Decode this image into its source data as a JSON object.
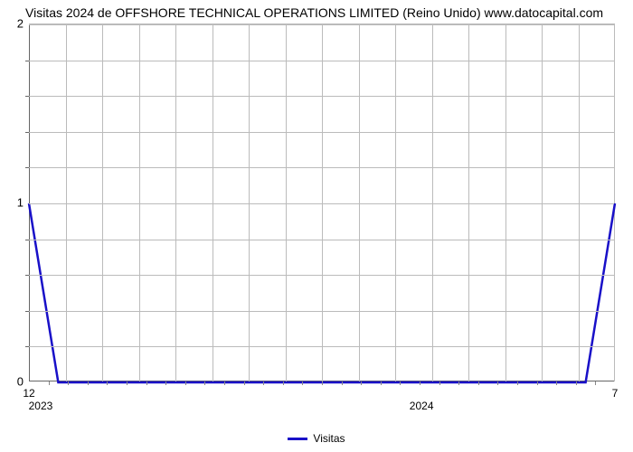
{
  "title": "Visitas 2024 de OFFSHORE TECHNICAL OPERATIONS LIMITED (Reino Unido) www.datocapital.com",
  "chart": {
    "type": "line",
    "background_color": "#ffffff",
    "grid_color": "#bbbbbb",
    "axis_color": "#666666",
    "line_color": "#1910c8",
    "line_width": 2.5,
    "yaxis": {
      "min": 0,
      "max": 2,
      "major_ticks": [
        0,
        1,
        2
      ],
      "minor_tick_count_between": 4
    },
    "xaxis": {
      "month_labels": [
        "12",
        "7"
      ],
      "year_labels": [
        "2023",
        "2024"
      ],
      "vertical_grid_count": 15,
      "minor_tick_segments": 30
    },
    "series": {
      "name": "Visitas",
      "points": [
        {
          "x": 0.0,
          "y": 1.0
        },
        {
          "x": 0.05,
          "y": 0.0
        },
        {
          "x": 0.95,
          "y": 0.0
        },
        {
          "x": 1.0,
          "y": 1.0
        }
      ]
    }
  },
  "legend": {
    "label": "Visitas",
    "swatch_color": "#1910c8"
  }
}
